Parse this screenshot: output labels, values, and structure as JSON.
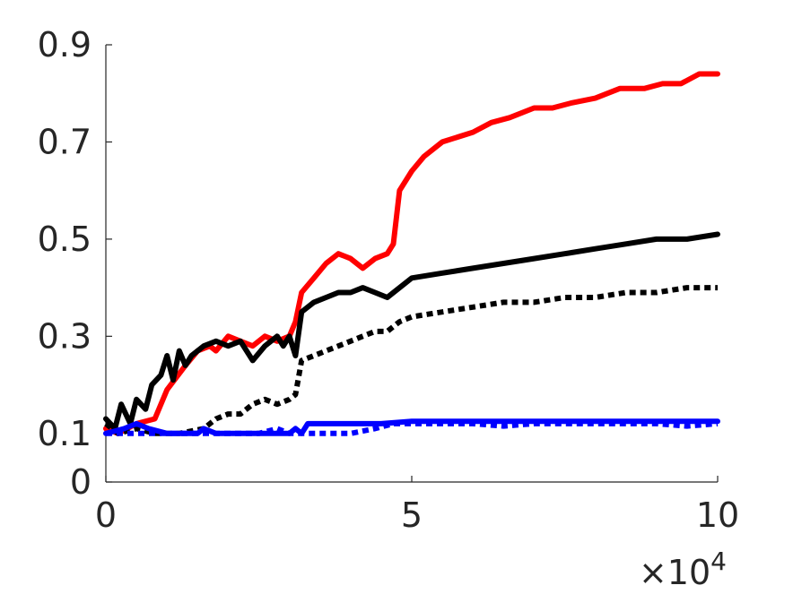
{
  "chart_data": {
    "type": "line",
    "title": "",
    "xlabel": "",
    "ylabel": "",
    "xlim": [
      0,
      100000
    ],
    "ylim": [
      0,
      0.9
    ],
    "x_ticks": [
      0,
      50000,
      100000
    ],
    "x_tick_labels": [
      "0",
      "5",
      "10"
    ],
    "x_multiplier_label": "×10",
    "x_multiplier_exponent": "4",
    "y_ticks": [
      0,
      0.1,
      0.3,
      0.5,
      0.7,
      0.9
    ],
    "y_tick_labels": [
      "0",
      "0.1",
      "0.3",
      "0.5",
      "0.7",
      "0.9"
    ],
    "grid": false,
    "legend": "none",
    "series": [
      {
        "color": "#ff0000",
        "dash": "solid",
        "points": [
          [
            0,
            0.11
          ],
          [
            2000,
            0.1
          ],
          [
            5000,
            0.12
          ],
          [
            8000,
            0.13
          ],
          [
            10000,
            0.19
          ],
          [
            13000,
            0.24
          ],
          [
            15000,
            0.27
          ],
          [
            17000,
            0.28
          ],
          [
            18000,
            0.27
          ],
          [
            20000,
            0.3
          ],
          [
            22000,
            0.29
          ],
          [
            24000,
            0.28
          ],
          [
            26000,
            0.3
          ],
          [
            28000,
            0.29
          ],
          [
            30000,
            0.3
          ],
          [
            31000,
            0.33
          ],
          [
            32000,
            0.39
          ],
          [
            34000,
            0.42
          ],
          [
            36000,
            0.45
          ],
          [
            38000,
            0.47
          ],
          [
            40000,
            0.46
          ],
          [
            42000,
            0.44
          ],
          [
            44000,
            0.46
          ],
          [
            46000,
            0.47
          ],
          [
            47000,
            0.49
          ],
          [
            48000,
            0.6
          ],
          [
            50000,
            0.64
          ],
          [
            52000,
            0.67
          ],
          [
            55000,
            0.7
          ],
          [
            60000,
            0.72
          ],
          [
            63000,
            0.74
          ],
          [
            66000,
            0.75
          ],
          [
            70000,
            0.77
          ],
          [
            73000,
            0.77
          ],
          [
            76000,
            0.78
          ],
          [
            80000,
            0.79
          ],
          [
            84000,
            0.81
          ],
          [
            88000,
            0.81
          ],
          [
            91000,
            0.82
          ],
          [
            94000,
            0.82
          ],
          [
            97000,
            0.84
          ],
          [
            100000,
            0.84
          ]
        ]
      },
      {
        "color": "#000000",
        "dash": "solid",
        "points": [
          [
            0,
            0.13
          ],
          [
            1500,
            0.11
          ],
          [
            2500,
            0.16
          ],
          [
            4000,
            0.12
          ],
          [
            5000,
            0.17
          ],
          [
            6500,
            0.15
          ],
          [
            7500,
            0.2
          ],
          [
            9000,
            0.22
          ],
          [
            10000,
            0.26
          ],
          [
            11000,
            0.21
          ],
          [
            12000,
            0.27
          ],
          [
            13000,
            0.24
          ],
          [
            14000,
            0.26
          ],
          [
            15000,
            0.27
          ],
          [
            16000,
            0.28
          ],
          [
            18000,
            0.29
          ],
          [
            20000,
            0.28
          ],
          [
            22000,
            0.29
          ],
          [
            24000,
            0.25
          ],
          [
            26000,
            0.28
          ],
          [
            28000,
            0.3
          ],
          [
            29000,
            0.28
          ],
          [
            30000,
            0.3
          ],
          [
            31000,
            0.26
          ],
          [
            32000,
            0.35
          ],
          [
            34000,
            0.37
          ],
          [
            36000,
            0.38
          ],
          [
            38000,
            0.39
          ],
          [
            40000,
            0.39
          ],
          [
            42000,
            0.4
          ],
          [
            44000,
            0.39
          ],
          [
            46000,
            0.38
          ],
          [
            48000,
            0.4
          ],
          [
            50000,
            0.42
          ],
          [
            55000,
            0.43
          ],
          [
            60000,
            0.44
          ],
          [
            65000,
            0.45
          ],
          [
            70000,
            0.46
          ],
          [
            75000,
            0.47
          ],
          [
            80000,
            0.48
          ],
          [
            85000,
            0.49
          ],
          [
            90000,
            0.5
          ],
          [
            95000,
            0.5
          ],
          [
            100000,
            0.51
          ]
        ]
      },
      {
        "color": "#000000",
        "dash": "dotted",
        "points": [
          [
            0,
            0.12
          ],
          [
            2000,
            0.1
          ],
          [
            5000,
            0.11
          ],
          [
            8000,
            0.1
          ],
          [
            12000,
            0.1
          ],
          [
            16000,
            0.11
          ],
          [
            18000,
            0.13
          ],
          [
            20000,
            0.14
          ],
          [
            22000,
            0.14
          ],
          [
            24000,
            0.16
          ],
          [
            26000,
            0.17
          ],
          [
            28000,
            0.16
          ],
          [
            30000,
            0.17
          ],
          [
            31000,
            0.18
          ],
          [
            32000,
            0.25
          ],
          [
            34000,
            0.26
          ],
          [
            36000,
            0.27
          ],
          [
            38000,
            0.28
          ],
          [
            40000,
            0.29
          ],
          [
            42000,
            0.3
          ],
          [
            44000,
            0.31
          ],
          [
            46000,
            0.31
          ],
          [
            48000,
            0.33
          ],
          [
            50000,
            0.34
          ],
          [
            55000,
            0.35
          ],
          [
            60000,
            0.36
          ],
          [
            65000,
            0.37
          ],
          [
            70000,
            0.37
          ],
          [
            75000,
            0.38
          ],
          [
            80000,
            0.38
          ],
          [
            85000,
            0.39
          ],
          [
            90000,
            0.39
          ],
          [
            95000,
            0.4
          ],
          [
            100000,
            0.4
          ]
        ]
      },
      {
        "color": "#0000ff",
        "dash": "solid",
        "points": [
          [
            0,
            0.1
          ],
          [
            3000,
            0.11
          ],
          [
            5000,
            0.12
          ],
          [
            7000,
            0.11
          ],
          [
            10000,
            0.1
          ],
          [
            15000,
            0.1
          ],
          [
            16000,
            0.11
          ],
          [
            18000,
            0.1
          ],
          [
            25000,
            0.1
          ],
          [
            30000,
            0.1
          ],
          [
            31000,
            0.11
          ],
          [
            32000,
            0.1
          ],
          [
            33000,
            0.12
          ],
          [
            36000,
            0.12
          ],
          [
            40000,
            0.12
          ],
          [
            45000,
            0.12
          ],
          [
            50000,
            0.125
          ],
          [
            60000,
            0.125
          ],
          [
            70000,
            0.125
          ],
          [
            80000,
            0.125
          ],
          [
            90000,
            0.125
          ],
          [
            100000,
            0.125
          ]
        ]
      },
      {
        "color": "#0000ff",
        "dash": "dotted",
        "points": [
          [
            0,
            0.1
          ],
          [
            5000,
            0.1
          ],
          [
            10000,
            0.1
          ],
          [
            20000,
            0.1
          ],
          [
            25000,
            0.1
          ],
          [
            28000,
            0.11
          ],
          [
            30000,
            0.1
          ],
          [
            35000,
            0.1
          ],
          [
            40000,
            0.1
          ],
          [
            44000,
            0.11
          ],
          [
            47000,
            0.12
          ],
          [
            50000,
            0.12
          ],
          [
            55000,
            0.12
          ],
          [
            60000,
            0.12
          ],
          [
            65000,
            0.115
          ],
          [
            70000,
            0.12
          ],
          [
            75000,
            0.12
          ],
          [
            80000,
            0.12
          ],
          [
            85000,
            0.12
          ],
          [
            90000,
            0.12
          ],
          [
            95000,
            0.115
          ],
          [
            100000,
            0.12
          ]
        ]
      }
    ]
  }
}
